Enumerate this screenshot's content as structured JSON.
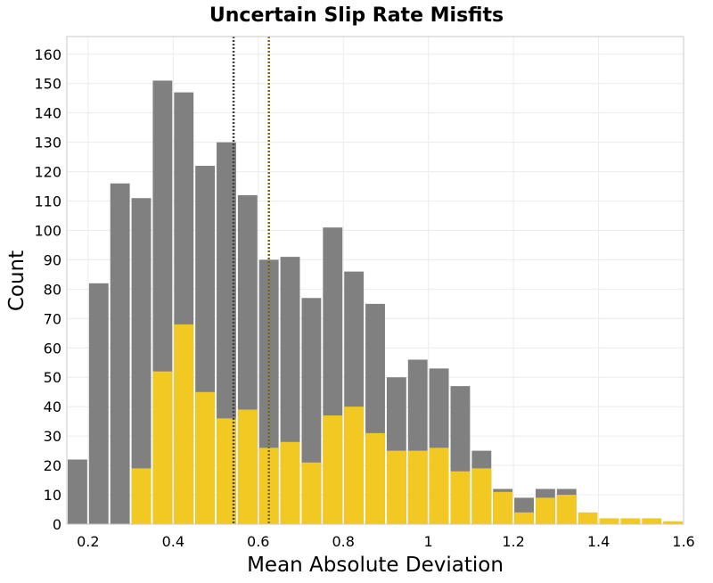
{
  "chart_data": {
    "type": "bar",
    "title": "Uncertain Slip Rate Misfits",
    "xlabel": "Mean Absolute Deviation",
    "ylabel": "Count",
    "xlim": [
      0.15,
      1.6
    ],
    "ylim": [
      0,
      166
    ],
    "xticks": [
      0.2,
      0.4,
      0.6,
      0.8,
      1,
      1.2,
      1.4,
      1.6
    ],
    "yticks": [
      0,
      10,
      20,
      30,
      40,
      50,
      60,
      70,
      80,
      90,
      100,
      110,
      120,
      130,
      140,
      150,
      160
    ],
    "grid": true,
    "bin_start": 0.15,
    "bin_width": 0.05,
    "series": [
      {
        "color": "#808080",
        "values": [
          22,
          82,
          116,
          111,
          151,
          147,
          122,
          130,
          112,
          90,
          91,
          77,
          101,
          86,
          75,
          50,
          56,
          53,
          47,
          25,
          12,
          9,
          12,
          12,
          0,
          0,
          0,
          0,
          0
        ]
      },
      {
        "color": "#f2c922",
        "values": [
          0,
          0,
          0,
          19,
          52,
          68,
          45,
          36,
          39,
          26,
          28,
          21,
          37,
          40,
          31,
          25,
          25,
          26,
          18,
          19,
          11,
          4,
          9,
          10,
          4,
          2,
          2,
          2,
          1
        ]
      }
    ],
    "vlines": [
      {
        "x": 0.542,
        "color": "#404040",
        "style": "dotted"
      },
      {
        "x": 0.625,
        "color": "#7a6514",
        "style": "dotted"
      }
    ]
  }
}
